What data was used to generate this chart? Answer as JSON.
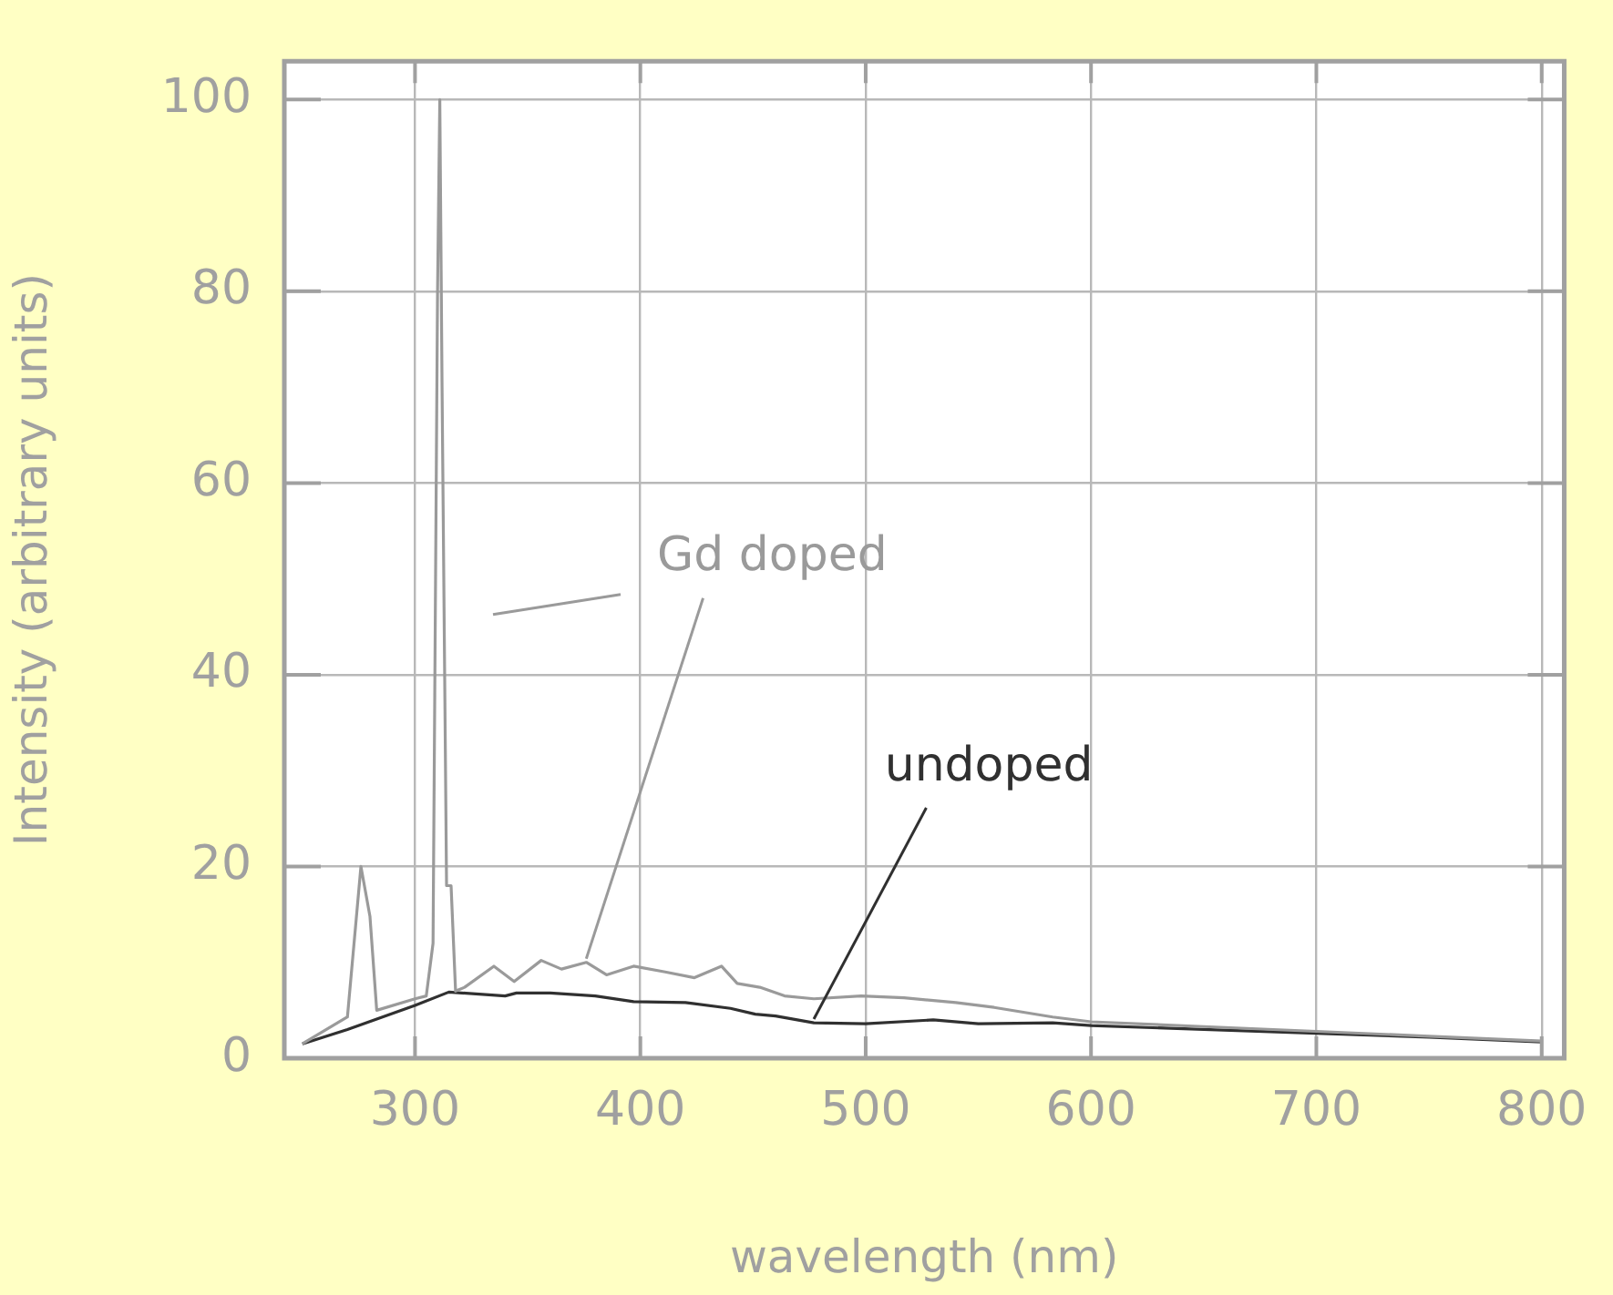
{
  "chart_data": {
    "type": "line",
    "xlabel": "wavelength (nm)",
    "ylabel": "Intensity (arbitrary units)",
    "xlim": [
      242,
      810
    ],
    "xticks": [
      300,
      400,
      500,
      600,
      700,
      800
    ],
    "ylim": [
      0,
      104
    ],
    "yticks": [
      0,
      20,
      40,
      60,
      80,
      100
    ],
    "grid": true,
    "legend": false,
    "marker": "none",
    "line_style": "solid",
    "series": [
      {
        "name": "Gd doped",
        "color": "#9a9a9a",
        "x": [
          250,
          270,
          276,
          280,
          283,
          300,
          305,
          308,
          310,
          311,
          312,
          314,
          316,
          318,
          322,
          335,
          344,
          356,
          365,
          376,
          385,
          397,
          411,
          424,
          436,
          443,
          453,
          464,
          477,
          498,
          517,
          540,
          557,
          583,
          600,
          650,
          700,
          750,
          800
        ],
        "values": [
          1.5,
          4.3,
          20,
          14.8,
          5,
          6.2,
          6.5,
          12,
          80,
          100,
          70,
          18,
          18,
          7,
          7.4,
          9.6,
          8,
          10.2,
          9.3,
          10,
          8.7,
          9.6,
          9,
          8.4,
          9.6,
          7.8,
          7.4,
          6.5,
          6.2,
          6.5,
          6.3,
          5.8,
          5.3,
          4.3,
          3.8,
          3.3,
          2.8,
          2.3,
          1.8
        ]
      },
      {
        "name": "undoped",
        "color": "#303030",
        "x": [
          250,
          270,
          300,
          315,
          340,
          345,
          360,
          380,
          397,
          420,
          440,
          451,
          460,
          477,
          500,
          530,
          550,
          583,
          600,
          650,
          700,
          750,
          800
        ],
        "values": [
          1.5,
          3,
          5.5,
          6.9,
          6.5,
          6.8,
          6.8,
          6.5,
          5.9,
          5.8,
          5.2,
          4.6,
          4.4,
          3.7,
          3.6,
          4,
          3.6,
          3.7,
          3.4,
          3,
          2.6,
          2.2,
          1.7
        ]
      }
    ]
  }
}
